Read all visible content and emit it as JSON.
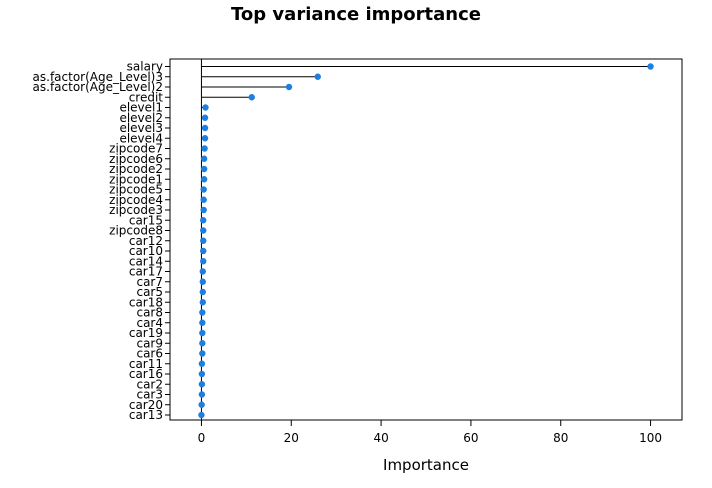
{
  "chart_data": {
    "type": "dot",
    "title": "Top variance importance",
    "xlabel": "Importance",
    "ylabel": "",
    "xlim": [
      -7,
      107
    ],
    "xticks": [
      0,
      20,
      40,
      60,
      80,
      100
    ],
    "grid": false,
    "legend": "none",
    "point_color": "#1f7fe0",
    "categories": [
      "salary",
      "as.factor(Age_Level)3",
      "as.factor(Age_Level)2",
      "credit",
      "elevel1",
      "elevel2",
      "elevel3",
      "elevel4",
      "zipcode7",
      "zipcode6",
      "zipcode2",
      "zipcode1",
      "zipcode5",
      "zipcode4",
      "zipcode3",
      "car15",
      "zipcode8",
      "car12",
      "car10",
      "car14",
      "car17",
      "car7",
      "car5",
      "car18",
      "car8",
      "car4",
      "car19",
      "car9",
      "car6",
      "car11",
      "car16",
      "car2",
      "car3",
      "car20",
      "car13"
    ],
    "values": [
      100,
      25.9,
      19.5,
      11.2,
      0.9,
      0.8,
      0.8,
      0.8,
      0.7,
      0.6,
      0.6,
      0.6,
      0.5,
      0.5,
      0.5,
      0.4,
      0.4,
      0.4,
      0.4,
      0.4,
      0.3,
      0.3,
      0.3,
      0.3,
      0.2,
      0.2,
      0.2,
      0.2,
      0.2,
      0.1,
      0.1,
      0.1,
      0.1,
      0.05,
      0
    ]
  }
}
